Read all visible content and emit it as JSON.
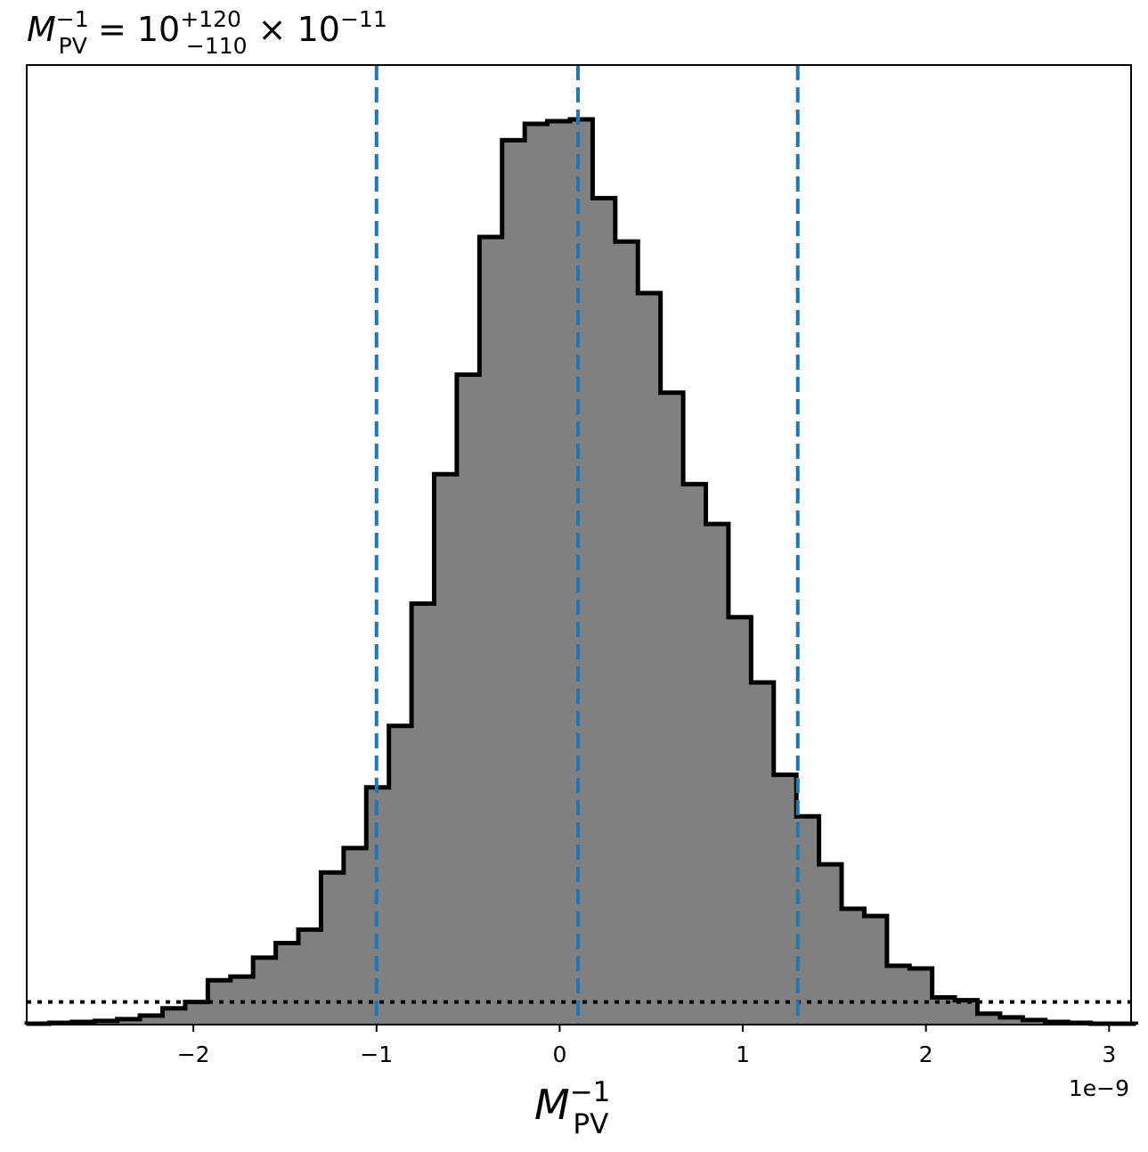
{
  "chart_data": {
    "type": "histogram",
    "title": {
      "symbol": "M",
      "symbol_sub": "PV",
      "symbol_sup": "−1",
      "equals": "=",
      "base": "10",
      "err_plus": "+120",
      "err_minus": "−110",
      "times": "×",
      "scale_base": "10",
      "scale_exp": "−11"
    },
    "xlabel": {
      "symbol": "M",
      "symbol_sub": "PV",
      "symbol_sup": "−1"
    },
    "x_offset_label": "1e−9",
    "xlim": [
      -2.91,
      3.12
    ],
    "ylim": [
      0,
      1.06
    ],
    "bin_width": 0.1236,
    "bin_left": -2.91,
    "counts": [
      0.001,
      0.002,
      0.003,
      0.004,
      0.006,
      0.01,
      0.018,
      0.025,
      0.049,
      0.053,
      0.074,
      0.09,
      0.105,
      0.168,
      0.195,
      0.262,
      0.33,
      0.465,
      0.608,
      0.718,
      0.87,
      0.977,
      0.995,
      0.998,
      1.0,
      0.913,
      0.865,
      0.808,
      0.698,
      0.597,
      0.553,
      0.45,
      0.378,
      0.276,
      0.23,
      0.177,
      0.128,
      0.12,
      0.065,
      0.062,
      0.03,
      0.027,
      0.012,
      0.008,
      0.005,
      0.003,
      0.002,
      0.001,
      0.001
    ],
    "x_ticks": [
      {
        "value": -2,
        "label": "−2"
      },
      {
        "value": -1,
        "label": "−1"
      },
      {
        "value": 0,
        "label": "0"
      },
      {
        "value": 1,
        "label": "1"
      },
      {
        "value": 2,
        "label": "2"
      },
      {
        "value": 3,
        "label": "3"
      }
    ],
    "quantile_lines": [
      -1.0,
      0.1,
      1.3
    ],
    "reference_level": 0.025,
    "colors": {
      "fill": "#808080",
      "edge": "#000000",
      "quantile": "#1f77b4",
      "reference": "#000000"
    },
    "y_ticks_visible": false,
    "grid": false
  }
}
